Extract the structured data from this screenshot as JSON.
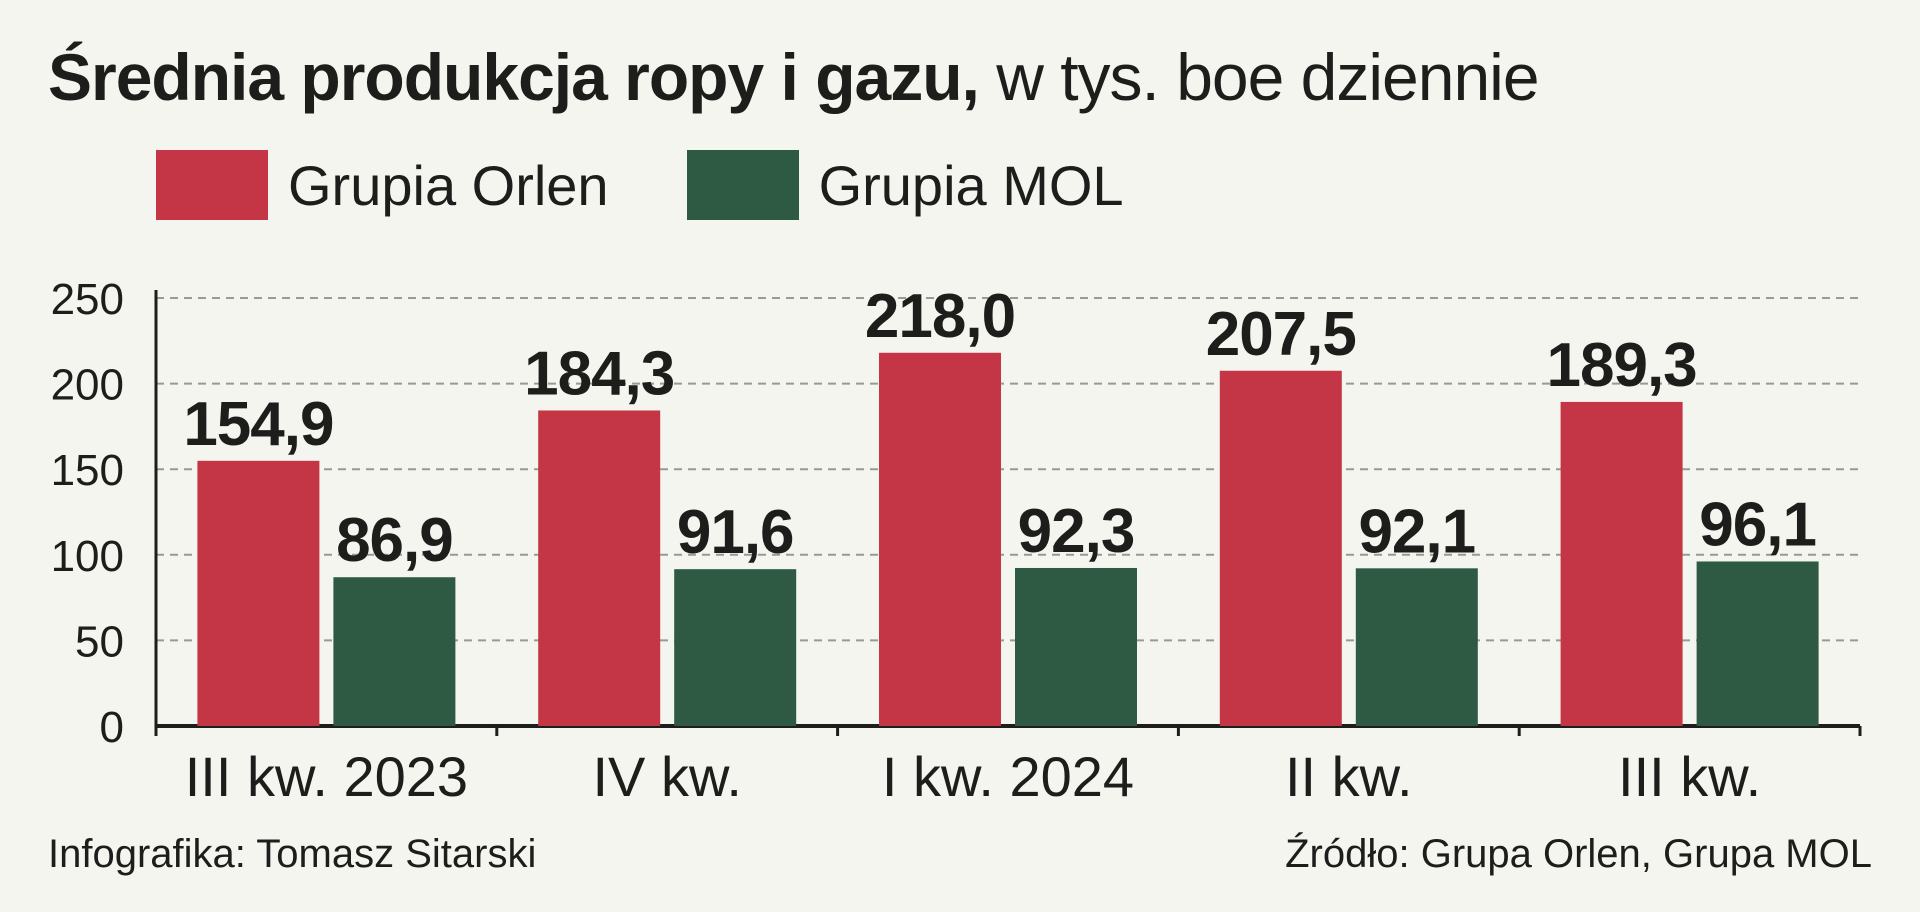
{
  "header": {
    "title_bold": "Średnia produkcja ropy i gazu,",
    "title_rest": " w tys. boe dziennie"
  },
  "legend": {
    "items": [
      {
        "label": "Grupia Orlen",
        "color": "#c43645"
      },
      {
        "label": "Grupia MOL",
        "color": "#2e5a44"
      }
    ]
  },
  "footer": {
    "credit": "Infografika: Tomasz Sitarski",
    "source": "Źródło: Grupa Orlen, Grupa MOL"
  },
  "chart_data": {
    "type": "bar",
    "categories": [
      "III kw. 2023",
      "IV kw.",
      "I kw. 2024",
      "II kw.",
      "III kw."
    ],
    "series": [
      {
        "name": "Grupia Orlen",
        "color": "#c43645",
        "values": [
          154.9,
          184.3,
          218.0,
          207.5,
          189.3
        ],
        "labels": [
          "154,9",
          "184,3",
          "218,0",
          "207,5",
          "189,3"
        ]
      },
      {
        "name": "Grupia MOL",
        "color": "#2e5a44",
        "values": [
          86.9,
          91.6,
          92.3,
          92.1,
          96.1
        ],
        "labels": [
          "86,9",
          "91,6",
          "92,3",
          "92,1",
          "96,1"
        ]
      }
    ],
    "yticks": [
      "0",
      "50",
      "100",
      "150",
      "200",
      "250"
    ],
    "ylim": [
      0,
      250
    ],
    "grid": true,
    "legend_position": "top-left"
  }
}
